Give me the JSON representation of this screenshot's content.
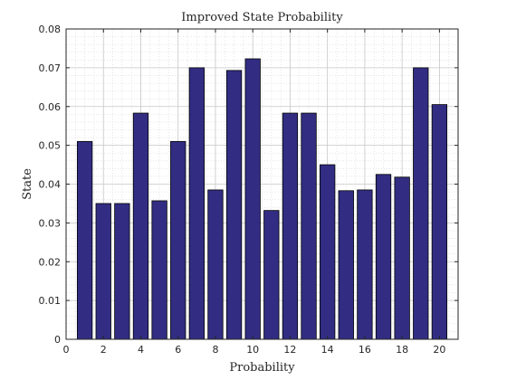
{
  "chart_data": {
    "type": "bar",
    "title": "Improved State Probability",
    "xlabel": "Probability",
    "ylabel": "State",
    "x": [
      1,
      2,
      3,
      4,
      5,
      6,
      7,
      8,
      9,
      10,
      11,
      12,
      13,
      14,
      15,
      16,
      17,
      18,
      19,
      20
    ],
    "values": [
      0.051,
      0.035,
      0.035,
      0.0583,
      0.0357,
      0.051,
      0.07,
      0.0385,
      0.0693,
      0.0723,
      0.0332,
      0.0583,
      0.0583,
      0.045,
      0.0383,
      0.0385,
      0.0425,
      0.0418,
      0.07,
      0.0605
    ],
    "xlim": [
      0,
      21
    ],
    "ylim": [
      0,
      0.08
    ],
    "xticks": [
      0,
      2,
      4,
      6,
      8,
      10,
      12,
      14,
      16,
      18,
      20
    ],
    "xtick_labels": [
      "0",
      "2",
      "4",
      "6",
      "8",
      "10",
      "12",
      "14",
      "16",
      "18",
      "20"
    ],
    "yticks": [
      0,
      0.01,
      0.02,
      0.03,
      0.04,
      0.05,
      0.06,
      0.07,
      0.08
    ],
    "ytick_labels": [
      "0",
      "0.01",
      "0.02",
      "0.03",
      "0.04",
      "0.05",
      "0.06",
      "0.07",
      "0.08"
    ],
    "grid": true,
    "minor_grid": true,
    "bar_color": "#322d82",
    "edge_color": "#000000"
  }
}
